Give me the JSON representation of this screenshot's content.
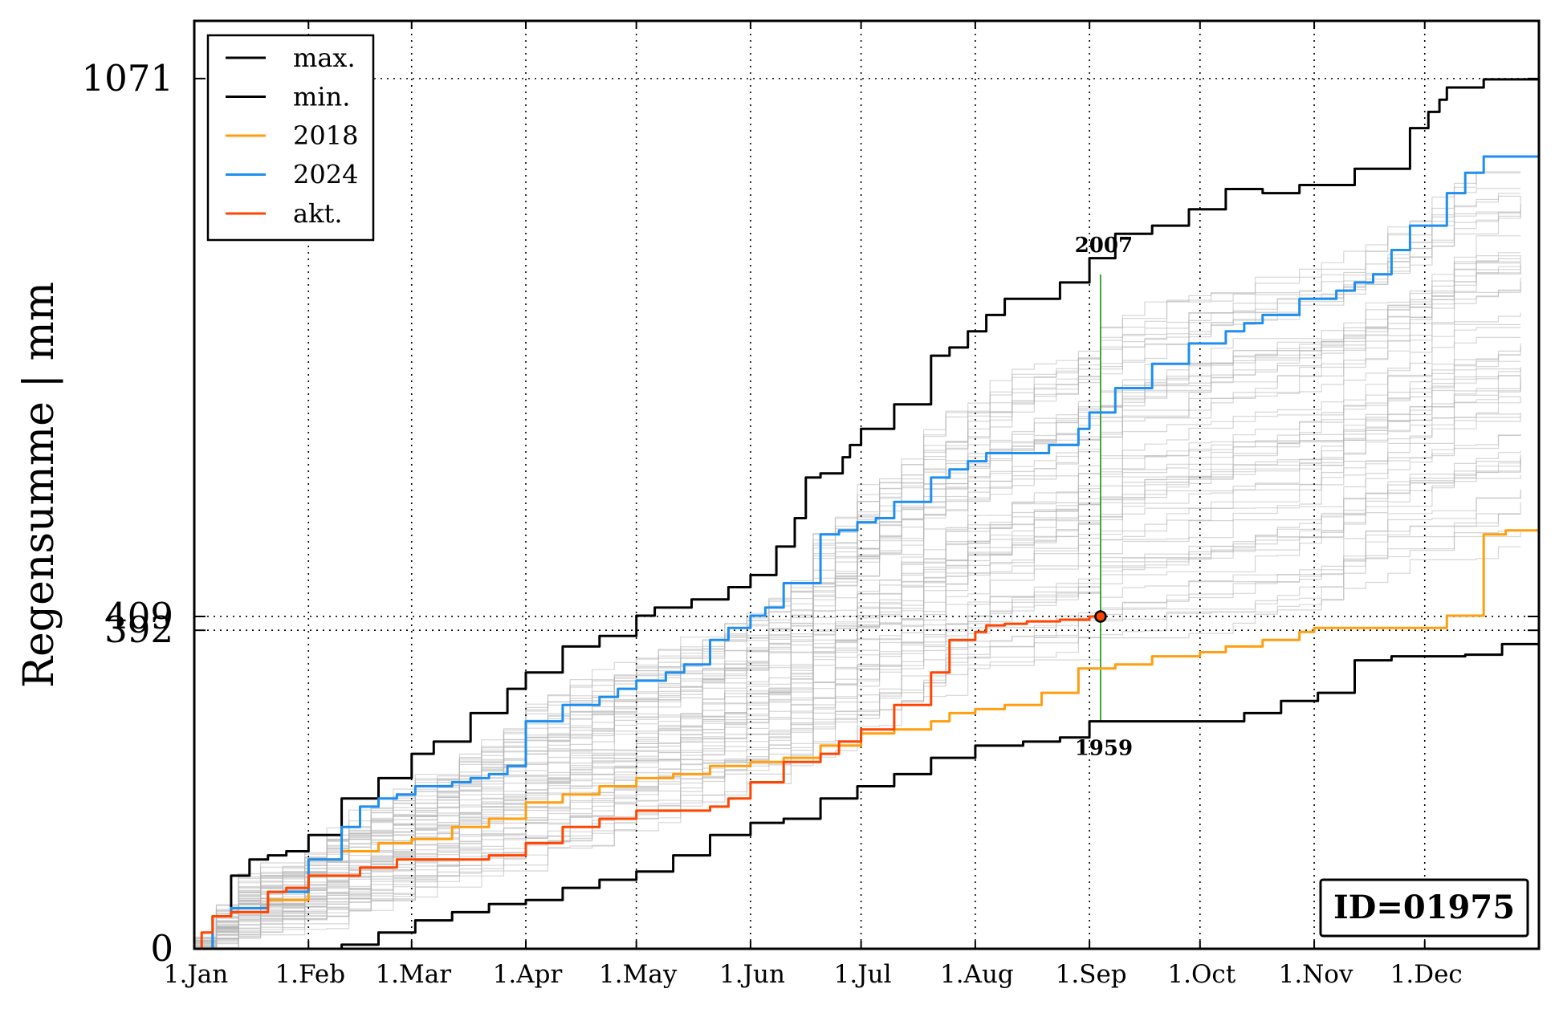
{
  "chart_data": {
    "type": "line",
    "xlabel": "",
    "ylabel": "Regensumme | mm",
    "xticks": [
      "1.Jan",
      "1.Feb",
      "1.Mar",
      "1.Apr",
      "1.May",
      "1.Jun",
      "1.Jul",
      "1.Aug",
      "1.Sep",
      "1.Oct",
      "1.Nov",
      "1.Dec"
    ],
    "xtick_days": [
      0,
      31,
      59,
      90,
      120,
      151,
      181,
      212,
      243,
      273,
      304,
      334
    ],
    "xlim": [
      0,
      365
    ],
    "ylim": [
      0,
      1142
    ],
    "yticks": [
      0,
      392,
      409,
      1071
    ],
    "ytick_labels": [
      "0",
      "392",
      "409",
      "1071"
    ],
    "grid": "dotted",
    "legend_position": "top-left",
    "series": [
      {
        "name": "max.",
        "color": "#000000",
        "x": [
          0,
          5,
          10,
          15,
          20,
          25,
          31,
          40,
          50,
          59,
          65,
          75,
          85,
          90,
          100,
          110,
          120,
          125,
          135,
          145,
          151,
          158,
          163,
          166,
          170,
          176,
          178,
          181,
          190,
          200,
          205,
          210,
          215,
          220,
          235,
          243,
          250,
          260,
          270,
          280,
          290,
          300,
          315,
          330,
          335,
          338,
          340,
          350,
          365
        ],
        "y": [
          0,
          40,
          90,
          110,
          115,
          120,
          140,
          185,
          210,
          240,
          255,
          290,
          320,
          340,
          372,
          385,
          410,
          420,
          430,
          445,
          460,
          495,
          530,
          580,
          585,
          605,
          620,
          640,
          670,
          730,
          740,
          760,
          780,
          800,
          820,
          850,
          880,
          890,
          910,
          935,
          930,
          940,
          960,
          1010,
          1030,
          1045,
          1060,
          1070,
          1071
        ]
      },
      {
        "name": "min.",
        "color": "#000000",
        "x": [
          0,
          31,
          40,
          50,
          60,
          70,
          80,
          90,
          100,
          110,
          120,
          130,
          140,
          151,
          160,
          170,
          180,
          190,
          200,
          212,
          225,
          235,
          243,
          250,
          260,
          273,
          285,
          295,
          305,
          315,
          325,
          334,
          345,
          355,
          365
        ],
        "y": [
          0,
          0,
          5,
          20,
          35,
          45,
          55,
          60,
          75,
          85,
          95,
          115,
          140,
          155,
          160,
          185,
          200,
          215,
          235,
          250,
          255,
          260,
          280,
          280,
          280,
          280,
          290,
          305,
          315,
          355,
          360,
          360,
          362,
          375,
          392
        ]
      },
      {
        "name": "2018",
        "color": "#ff9e0e",
        "x": [
          0,
          5,
          10,
          20,
          31,
          40,
          50,
          59,
          70,
          80,
          90,
          100,
          110,
          120,
          130,
          140,
          151,
          160,
          170,
          181,
          190,
          200,
          205,
          212,
          220,
          230,
          240,
          243,
          250,
          260,
          273,
          280,
          290,
          300,
          304,
          315,
          334,
          340,
          350,
          356,
          365
        ],
        "y": [
          0,
          40,
          50,
          60,
          110,
          120,
          130,
          135,
          150,
          160,
          180,
          190,
          200,
          210,
          215,
          225,
          230,
          235,
          250,
          265,
          270,
          280,
          290,
          295,
          300,
          315,
          345,
          345,
          350,
          360,
          365,
          372,
          380,
          390,
          395,
          395,
          395,
          410,
          510,
          515,
          520
        ]
      },
      {
        "name": "2024",
        "color": "#1e8ff0",
        "x": [
          0,
          5,
          10,
          20,
          31,
          40,
          45,
          50,
          55,
          60,
          70,
          75,
          80,
          85,
          90,
          100,
          110,
          115,
          120,
          128,
          133,
          140,
          145,
          151,
          155,
          160,
          170,
          175,
          180,
          185,
          190,
          200,
          205,
          210,
          215,
          225,
          232,
          240,
          243,
          250,
          260,
          270,
          280,
          285,
          290,
          300,
          310,
          315,
          320,
          325,
          330,
          340,
          345,
          350,
          365
        ],
        "y": [
          0,
          40,
          50,
          70,
          110,
          150,
          175,
          185,
          190,
          200,
          205,
          210,
          215,
          225,
          280,
          300,
          310,
          320,
          330,
          340,
          350,
          380,
          395,
          410,
          420,
          450,
          510,
          515,
          525,
          530,
          550,
          580,
          590,
          600,
          610,
          610,
          620,
          640,
          660,
          690,
          720,
          745,
          760,
          770,
          780,
          800,
          810,
          820,
          830,
          860,
          890,
          930,
          955,
          975,
          1000
        ]
      },
      {
        "name": "akt.",
        "color": "#ff4500",
        "x": [
          0,
          2,
          5,
          10,
          20,
          25,
          31,
          45,
          55,
          60,
          70,
          80,
          90,
          100,
          110,
          120,
          130,
          140,
          145,
          151,
          160,
          170,
          175,
          181,
          190,
          200,
          205,
          212,
          215,
          220,
          226,
          235,
          243,
          246
        ],
        "y": [
          0,
          20,
          40,
          45,
          70,
          75,
          90,
          100,
          110,
          110,
          110,
          115,
          130,
          150,
          160,
          170,
          170,
          175,
          185,
          205,
          230,
          240,
          255,
          270,
          300,
          340,
          380,
          390,
          398,
          400,
          403,
          405,
          409,
          409
        ]
      }
    ],
    "annotations": [
      {
        "text": "2007",
        "x": 246,
        "y": 830
      },
      {
        "text": "1959",
        "x": 246,
        "y": 280
      }
    ],
    "marker": {
      "x": 246,
      "y": 409,
      "color": "#ff4500"
    },
    "vertical_marker": {
      "x": 246,
      "y_from": 280,
      "y_to": 830,
      "color": "#2ca02c"
    },
    "background_years_color": "#b5b5b5",
    "id_label": "ID=01975"
  }
}
